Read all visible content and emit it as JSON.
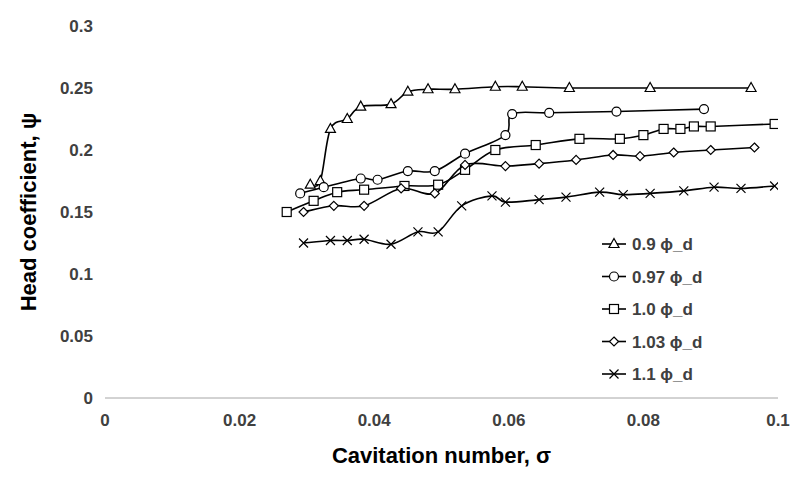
{
  "chart_data": {
    "type": "line",
    "x_label": "Cavitation number, σ",
    "y_label": "Head coefficient, ψ",
    "xlim": [
      0,
      0.1
    ],
    "xticks": [
      0,
      0.02,
      0.04,
      0.06,
      0.08,
      0.1
    ],
    "ylim": [
      0,
      0.3
    ],
    "yticks": [
      0,
      0.05,
      0.1,
      0.15,
      0.2,
      0.25,
      0.3
    ],
    "grid": false,
    "legend": "right",
    "series": [
      {
        "name": "0.9 ϕ_d",
        "color": "#000000",
        "marker": "triangle",
        "x": [
          0.0305,
          0.032,
          0.0335,
          0.036,
          0.038,
          0.0425,
          0.045,
          0.048,
          0.052,
          0.058,
          0.062,
          0.069,
          0.081,
          0.096
        ],
        "values": [
          0.172,
          0.175,
          0.217,
          0.225,
          0.235,
          0.237,
          0.247,
          0.249,
          0.249,
          0.251,
          0.251,
          0.25,
          0.25,
          0.25
        ]
      },
      {
        "name": "0.97 ϕ_d",
        "color": "#000000",
        "marker": "circle",
        "x": [
          0.029,
          0.0325,
          0.038,
          0.0405,
          0.045,
          0.049,
          0.0535,
          0.0595,
          0.0605,
          0.066,
          0.076,
          0.089
        ],
        "values": [
          0.165,
          0.17,
          0.177,
          0.176,
          0.183,
          0.183,
          0.197,
          0.212,
          0.229,
          0.23,
          0.231,
          0.233
        ]
      },
      {
        "name": "1.0 ϕ_d",
        "color": "#000000",
        "marker": "square",
        "x": [
          0.027,
          0.031,
          0.0345,
          0.0385,
          0.0445,
          0.0495,
          0.0535,
          0.058,
          0.064,
          0.0705,
          0.0765,
          0.08,
          0.083,
          0.0855,
          0.0875,
          0.09,
          0.0995
        ],
        "values": [
          0.15,
          0.159,
          0.166,
          0.168,
          0.171,
          0.172,
          0.184,
          0.2,
          0.204,
          0.209,
          0.209,
          0.212,
          0.217,
          0.217,
          0.219,
          0.219,
          0.221
        ]
      },
      {
        "name": "1.03 ϕ_d",
        "color": "#000000",
        "marker": "diamond",
        "x": [
          0.0295,
          0.034,
          0.0385,
          0.044,
          0.049,
          0.0535,
          0.0595,
          0.0645,
          0.07,
          0.0755,
          0.0795,
          0.0845,
          0.09,
          0.0965
        ],
        "values": [
          0.15,
          0.155,
          0.155,
          0.169,
          0.165,
          0.188,
          0.187,
          0.189,
          0.192,
          0.196,
          0.195,
          0.198,
          0.2,
          0.202
        ]
      },
      {
        "name": "1.1 ϕ_d",
        "color": "#000000",
        "marker": "x",
        "x": [
          0.0295,
          0.0335,
          0.036,
          0.0385,
          0.0425,
          0.0465,
          0.0495,
          0.053,
          0.0575,
          0.0595,
          0.0645,
          0.0685,
          0.0735,
          0.077,
          0.081,
          0.086,
          0.0905,
          0.0945,
          0.0995
        ],
        "values": [
          0.125,
          0.127,
          0.127,
          0.128,
          0.124,
          0.134,
          0.134,
          0.155,
          0.163,
          0.158,
          0.16,
          0.162,
          0.166,
          0.164,
          0.165,
          0.167,
          0.17,
          0.169,
          0.171
        ]
      }
    ]
  }
}
